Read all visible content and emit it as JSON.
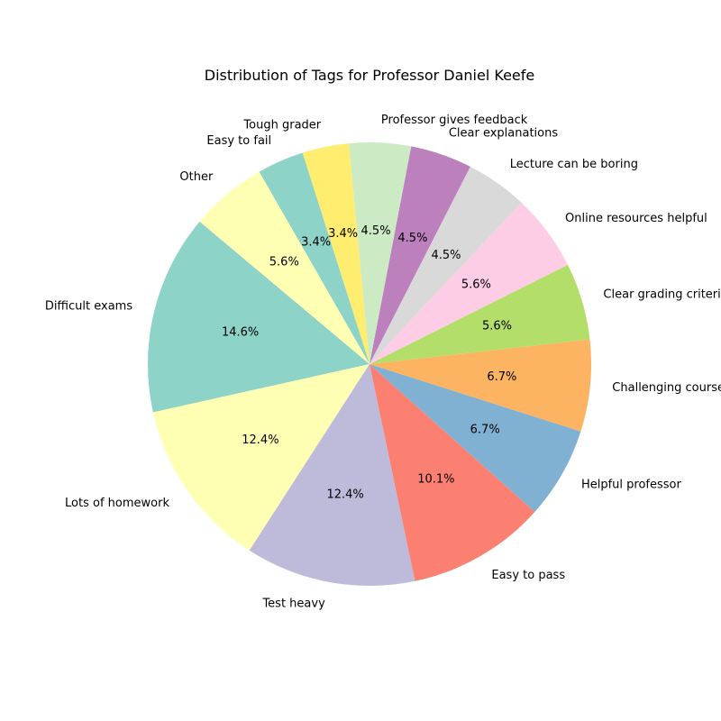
{
  "chart_data": {
    "type": "pie",
    "title": "Distribution of Tags for Professor Daniel Keefe",
    "start_angle_deg": 140,
    "direction": "counterclockwise",
    "slices": [
      {
        "label": "Difficult exams",
        "value": 14.6,
        "pct_text": "14.6%",
        "color": "#8dd3c7"
      },
      {
        "label": "Lots of homework",
        "value": 12.4,
        "pct_text": "12.4%",
        "color": "#ffffb3"
      },
      {
        "label": "Test heavy",
        "value": 12.4,
        "pct_text": "12.4%",
        "color": "#bebada"
      },
      {
        "label": "Easy to pass",
        "value": 10.1,
        "pct_text": "10.1%",
        "color": "#fb8072"
      },
      {
        "label": "Helpful professor",
        "value": 6.7,
        "pct_text": "6.7%",
        "color": "#80b1d3"
      },
      {
        "label": "Challenging course",
        "value": 6.7,
        "pct_text": "6.7%",
        "color": "#fdb462"
      },
      {
        "label": "Clear grading criteria",
        "value": 5.6,
        "pct_text": "5.6%",
        "color": "#b3de69"
      },
      {
        "label": "Online resources helpful",
        "value": 5.6,
        "pct_text": "5.6%",
        "color": "#fccde5"
      },
      {
        "label": "Lecture can be boring",
        "value": 4.5,
        "pct_text": "4.5%",
        "color": "#d9d9d9"
      },
      {
        "label": "Clear explanations",
        "value": 4.5,
        "pct_text": "4.5%",
        "color": "#bc80bd"
      },
      {
        "label": "Professor gives feedback",
        "value": 4.5,
        "pct_text": "4.5%",
        "color": "#ccebc5"
      },
      {
        "label": "Tough grader",
        "value": 3.4,
        "pct_text": "3.4%",
        "color": "#ffed6f"
      },
      {
        "label": "Easy to fail",
        "value": 3.4,
        "pct_text": "3.4%",
        "color": "#8dd3c7"
      },
      {
        "label": "Other",
        "value": 5.6,
        "pct_text": "5.6%",
        "color": "#ffffb3"
      }
    ]
  }
}
